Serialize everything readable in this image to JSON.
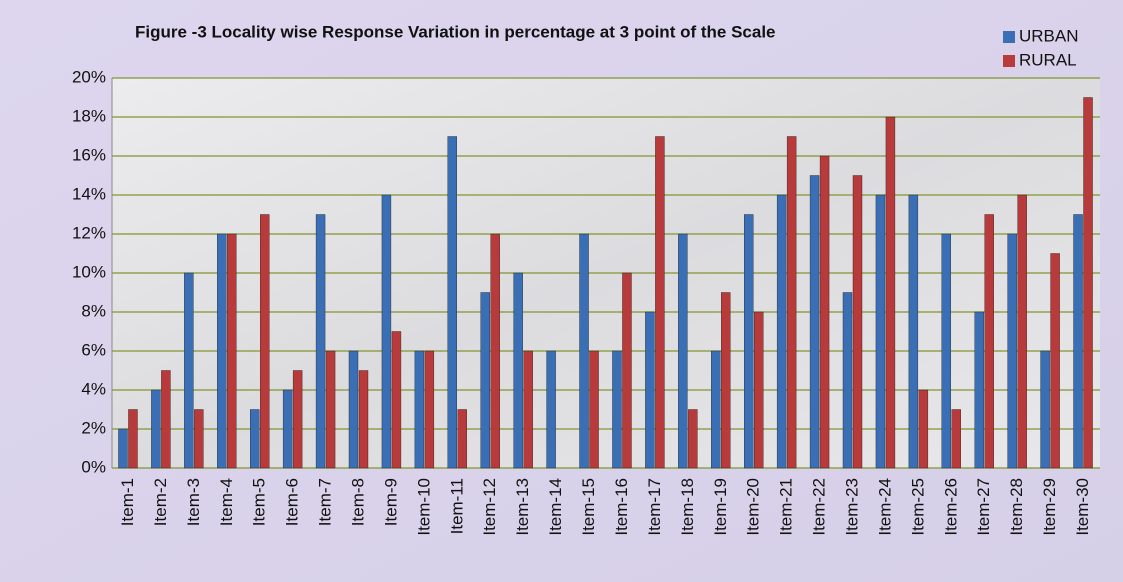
{
  "chart_data": {
    "type": "bar",
    "title": "Figure -3 Locality wise Response Variation in percentage at 3 point of the Scale",
    "categories": [
      "Item-1",
      "Item-2",
      "Item-3",
      "Item-4",
      "Item-5",
      "Item-6",
      "Item-7",
      "Item-8",
      "Item-9",
      "Item-10",
      "Item-11",
      "Item-12",
      "Item-13",
      "Item-14",
      "Item-15",
      "Item-16",
      "Item-17",
      "Item-18",
      "Item-19",
      "Item-20",
      "Item-21",
      "Item-22",
      "Item-23",
      "Item-24",
      "Item-25",
      "Item-26",
      "Item-27",
      "Item-28",
      "Item-29",
      "Item-30"
    ],
    "series": [
      {
        "name": "URBAN",
        "color": "#3a6fb5",
        "values": [
          2,
          4,
          10,
          12,
          3,
          4,
          13,
          6,
          14,
          6,
          17,
          9,
          10,
          6,
          12,
          6,
          8,
          12,
          6,
          13,
          14,
          15,
          9,
          14,
          14,
          12,
          8,
          12,
          6,
          13
        ]
      },
      {
        "name": "RURAL",
        "color": "#b83a3a",
        "values": [
          3,
          5,
          3,
          12,
          13,
          5,
          6,
          5,
          7,
          6,
          3,
          12,
          6,
          0,
          6,
          10,
          17,
          3,
          9,
          8,
          17,
          16,
          15,
          18,
          4,
          3,
          13,
          14,
          11,
          19
        ]
      }
    ],
    "ylim": [
      0,
      20
    ],
    "yticks": [
      {
        "value": 0,
        "label": "0%"
      },
      {
        "value": 2,
        "label": "2%"
      },
      {
        "value": 4,
        "label": "4%"
      },
      {
        "value": 6,
        "label": "6%"
      },
      {
        "value": 8,
        "label": "8%"
      },
      {
        "value": 10,
        "label": "10%"
      },
      {
        "value": 12,
        "label": "12%"
      },
      {
        "value": 14,
        "label": "14%"
      },
      {
        "value": 16,
        "label": "16%"
      },
      {
        "value": 18,
        "label": "18%"
      },
      {
        "value": 20,
        "label": "20%"
      }
    ],
    "grid": true,
    "legend": "top-right"
  }
}
